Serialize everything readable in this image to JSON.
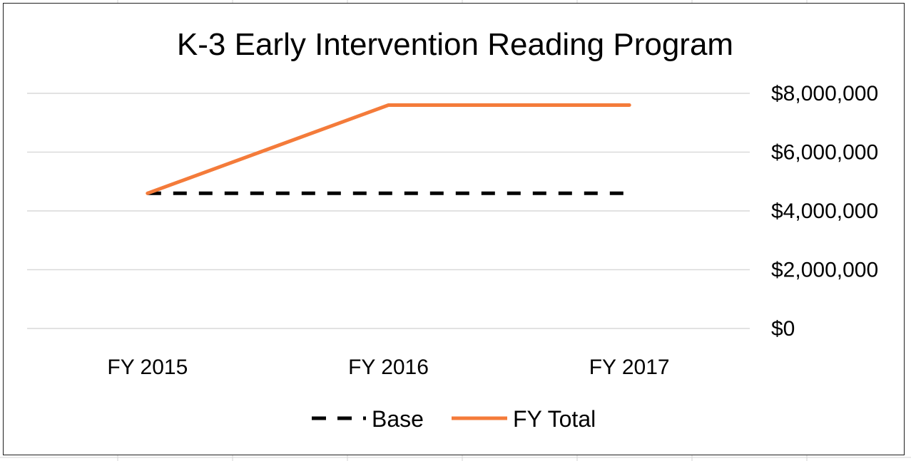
{
  "chart_data": {
    "type": "line",
    "title": "K-3 Early Intervention Reading Program",
    "categories": [
      "FY 2015",
      "FY 2016",
      "FY 2017"
    ],
    "y_ticks": [
      "$0",
      "$2,000,000",
      "$4,000,000",
      "$6,000,000",
      "$8,000,000"
    ],
    "y_tick_values": [
      0,
      2000000,
      4000000,
      6000000,
      8000000
    ],
    "ylim": [
      0,
      8000000
    ],
    "y_axis_position": "right",
    "grid": true,
    "legend": "bottom",
    "series": [
      {
        "name": "Base",
        "values": [
          4600000,
          4600000,
          4600000
        ],
        "color": "#000000",
        "style": "dashed"
      },
      {
        "name": "FY Total",
        "values": [
          4600000,
          7600000,
          7600000
        ],
        "color": "#f47b3a",
        "style": "solid"
      }
    ]
  }
}
